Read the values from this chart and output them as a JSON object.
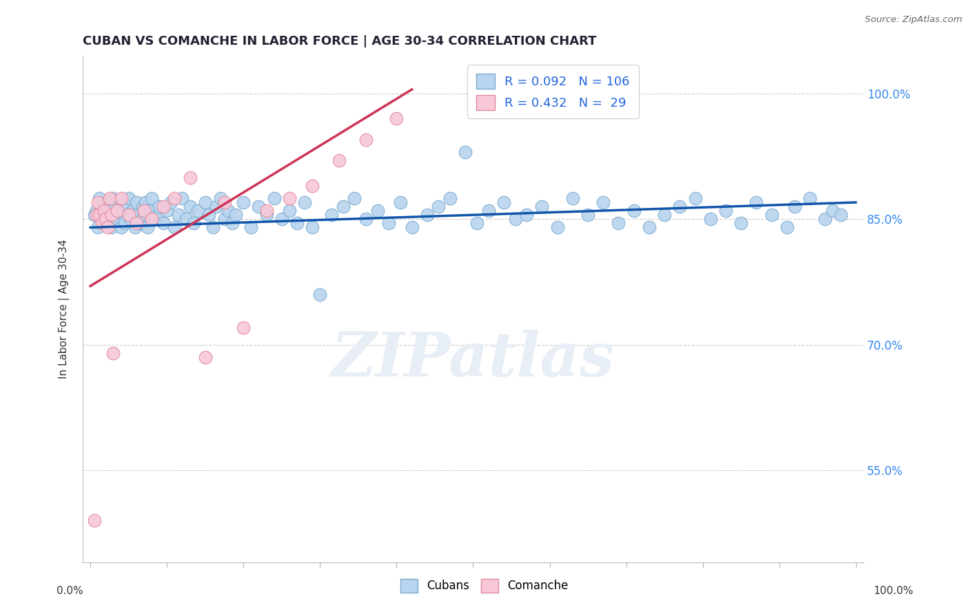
{
  "title": "CUBAN VS COMANCHE IN LABOR FORCE | AGE 30-34 CORRELATION CHART",
  "source_text": "Source: ZipAtlas.com",
  "ylabel": "In Labor Force | Age 30-34",
  "ylim": [
    0.44,
    1.045
  ],
  "xlim": [
    -0.01,
    1.01
  ],
  "watermark": "ZIPatlas",
  "cubans_color": "#b8d4ee",
  "cubans_edge_color": "#7aaad0",
  "comanche_color": "#f8c8d8",
  "comanche_edge_color": "#e08898",
  "cubans_line_color": "#1155aa",
  "comanche_line_color": "#cc3355",
  "legend_R_cubans": "R = 0.092",
  "legend_N_cubans": "N = 106",
  "legend_R_comanche": "R = 0.432",
  "legend_N_comanche": "N =  29",
  "cubans_x": [
    0.005,
    0.008,
    0.01,
    0.012,
    0.015,
    0.018,
    0.02,
    0.022,
    0.025,
    0.025,
    0.028,
    0.03,
    0.03,
    0.032,
    0.035,
    0.038,
    0.04,
    0.042,
    0.044,
    0.045,
    0.048,
    0.05,
    0.052,
    0.055,
    0.058,
    0.06,
    0.062,
    0.065,
    0.068,
    0.07,
    0.072,
    0.075,
    0.078,
    0.08,
    0.085,
    0.088,
    0.09,
    0.095,
    0.1,
    0.105,
    0.11,
    0.115,
    0.12,
    0.125,
    0.13,
    0.135,
    0.14,
    0.15,
    0.155,
    0.16,
    0.165,
    0.17,
    0.175,
    0.18,
    0.185,
    0.19,
    0.2,
    0.21,
    0.22,
    0.23,
    0.24,
    0.25,
    0.26,
    0.27,
    0.28,
    0.29,
    0.3,
    0.315,
    0.33,
    0.345,
    0.36,
    0.375,
    0.39,
    0.405,
    0.42,
    0.44,
    0.455,
    0.47,
    0.49,
    0.505,
    0.52,
    0.54,
    0.555,
    0.57,
    0.59,
    0.61,
    0.63,
    0.65,
    0.67,
    0.69,
    0.71,
    0.73,
    0.75,
    0.77,
    0.79,
    0.81,
    0.83,
    0.85,
    0.87,
    0.89,
    0.91,
    0.92,
    0.94,
    0.96,
    0.97,
    0.98
  ],
  "cubans_y": [
    0.855,
    0.86,
    0.84,
    0.875,
    0.85,
    0.865,
    0.855,
    0.845,
    0.87,
    0.86,
    0.84,
    0.875,
    0.855,
    0.865,
    0.85,
    0.86,
    0.84,
    0.87,
    0.855,
    0.845,
    0.865,
    0.875,
    0.85,
    0.86,
    0.84,
    0.87,
    0.855,
    0.845,
    0.865,
    0.855,
    0.87,
    0.84,
    0.86,
    0.875,
    0.85,
    0.855,
    0.865,
    0.845,
    0.86,
    0.87,
    0.84,
    0.855,
    0.875,
    0.85,
    0.865,
    0.845,
    0.86,
    0.87,
    0.855,
    0.84,
    0.865,
    0.875,
    0.85,
    0.86,
    0.845,
    0.855,
    0.87,
    0.84,
    0.865,
    0.855,
    0.875,
    0.85,
    0.86,
    0.845,
    0.87,
    0.84,
    0.76,
    0.855,
    0.865,
    0.875,
    0.85,
    0.86,
    0.845,
    0.87,
    0.84,
    0.855,
    0.865,
    0.875,
    0.93,
    0.845,
    0.86,
    0.87,
    0.85,
    0.855,
    0.865,
    0.84,
    0.875,
    0.855,
    0.87,
    0.845,
    0.86,
    0.84,
    0.855,
    0.865,
    0.875,
    0.85,
    0.86,
    0.845,
    0.87,
    0.855,
    0.84,
    0.865,
    0.875,
    0.85,
    0.86,
    0.855
  ],
  "comanche_x": [
    0.005,
    0.008,
    0.01,
    0.012,
    0.015,
    0.018,
    0.02,
    0.022,
    0.025,
    0.028,
    0.03,
    0.035,
    0.04,
    0.05,
    0.06,
    0.07,
    0.08,
    0.095,
    0.11,
    0.13,
    0.15,
    0.175,
    0.2,
    0.23,
    0.26,
    0.29,
    0.325,
    0.36,
    0.4
  ],
  "comanche_y": [
    0.49,
    0.855,
    0.87,
    0.855,
    0.845,
    0.86,
    0.85,
    0.84,
    0.875,
    0.855,
    0.69,
    0.86,
    0.875,
    0.855,
    0.845,
    0.86,
    0.85,
    0.865,
    0.875,
    0.9,
    0.685,
    0.87,
    0.72,
    0.86,
    0.875,
    0.89,
    0.92,
    0.945,
    0.97
  ],
  "cubans_trend": [
    0.0,
    1.0,
    0.84,
    0.87
  ],
  "comanche_trend_x": [
    0.0,
    0.42
  ],
  "comanche_trend_y": [
    0.77,
    1.005
  ],
  "ytick_positions": [
    0.55,
    0.7,
    0.85,
    1.0
  ],
  "ytick_labels": [
    "55.0%",
    "70.0%",
    "85.0%",
    "100.0%"
  ],
  "grid_color": "#cccccc",
  "bg_color": "#ffffff"
}
